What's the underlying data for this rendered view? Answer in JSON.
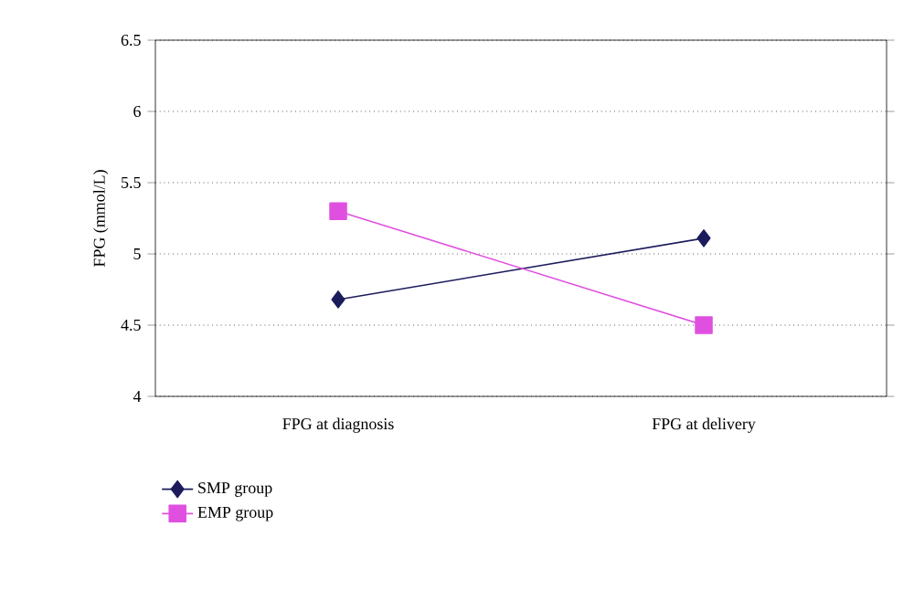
{
  "chart_data": {
    "type": "line",
    "ylabel": "FPG (mmol/L)",
    "categories": [
      "FPG at diagnosis",
      "FPG at delivery"
    ],
    "series": [
      {
        "name": "SMP group",
        "color": "#1c1c5c",
        "values": [
          4.68,
          5.11
        ],
        "marker": "diamond"
      },
      {
        "name": "EMP group",
        "color": "#e050e0",
        "values": [
          5.3,
          4.5
        ],
        "marker": "square"
      }
    ],
    "ylim": [
      4,
      6.5
    ],
    "yticks": [
      4,
      4.5,
      5,
      5.5,
      6,
      6.5
    ],
    "grid": "y",
    "legend": "bottom left",
    "line_style": "solid"
  }
}
